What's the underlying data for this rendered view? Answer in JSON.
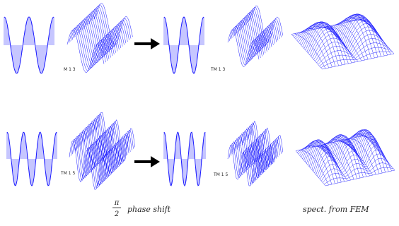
{
  "labels": [
    "M 1 3",
    "TM 1 3",
    "TM 1 5",
    "TM 1 5"
  ],
  "caption": {
    "numerator": "π",
    "denominator": "2",
    "phase": "phase shift",
    "fem": "spect. from FEM"
  }
}
